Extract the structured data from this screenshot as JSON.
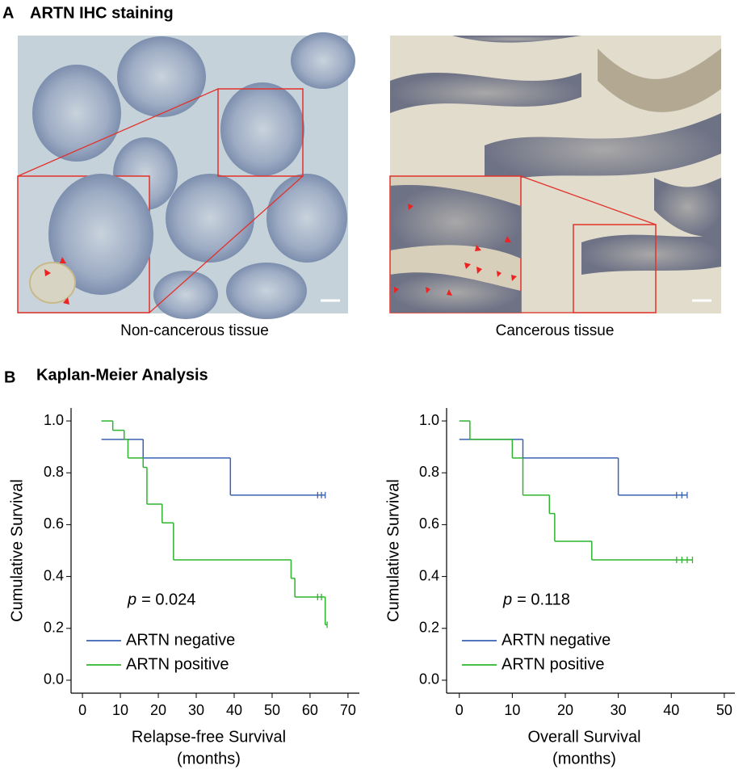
{
  "panel_a": {
    "label": "A",
    "title": "ARTN IHC staining",
    "captions": [
      "Non-cancerous tissue",
      "Cancerous tissue"
    ]
  },
  "panel_b": {
    "label": "B",
    "title": "Kaplan-Meier Analysis"
  },
  "chart_data": [
    {
      "type": "km",
      "xlabel": [
        "Relapse-free Survival",
        "(months)"
      ],
      "ylabel": "Cumulative Survival",
      "xlim": [
        -3,
        73
      ],
      "ylim": [
        -0.05,
        1.05
      ],
      "xticks": [
        0,
        10,
        20,
        30,
        40,
        50,
        60,
        70
      ],
      "yticks": [
        {
          "value": 0,
          "label": "0.0"
        },
        0.2,
        0.4,
        0.6,
        0.8,
        {
          "value": 1,
          "label": "1.0"
        }
      ],
      "legend": "lower left",
      "annotation": {
        "symbol": "p",
        "text": "= 0.024",
        "color": "#e8201e"
      },
      "series": [
        {
          "name": "ARTN negative",
          "color": "#3a62b4",
          "x": [
            5,
            16,
            39,
            62,
            63,
            64
          ],
          "values": [
            0.929,
            0.857,
            0.714,
            0.714,
            0.714,
            0.714
          ],
          "censored": [
            false,
            false,
            false,
            true,
            true,
            true
          ]
        },
        {
          "name": "ARTN positive",
          "color": "#2db52d",
          "x": [
            5,
            8,
            11,
            12,
            16,
            17,
            21,
            24,
            55,
            56,
            62,
            63,
            64,
            64.5
          ],
          "values": [
            1,
            0.964,
            0.929,
            0.857,
            0.821,
            0.679,
            0.607,
            0.464,
            0.393,
            0.321,
            0.321,
            0.321,
            0.214,
            0.214
          ],
          "censored": [
            false,
            false,
            false,
            false,
            false,
            false,
            false,
            false,
            false,
            false,
            true,
            true,
            false,
            true
          ]
        }
      ]
    },
    {
      "type": "km",
      "xlabel": [
        "Overall Survival",
        "(months)"
      ],
      "ylabel": "Cumulative Survival",
      "xlim": [
        -2.4,
        52
      ],
      "ylim": [
        -0.05,
        1.05
      ],
      "xticks": [
        0,
        10,
        20,
        30,
        40,
        50
      ],
      "yticks": [
        {
          "value": 0,
          "label": "0.0"
        },
        0.2,
        0.4,
        0.6,
        0.8,
        {
          "value": 1,
          "label": "1.0"
        }
      ],
      "legend": "lower left",
      "annotation": {
        "symbol": "p",
        "text": "= 0.118",
        "color": "#000000"
      },
      "series": [
        {
          "name": "ARTN negative",
          "color": "#3a62b4",
          "x": [
            0,
            12,
            30,
            41,
            42,
            43
          ],
          "values": [
            0.929,
            0.857,
            0.714,
            0.714,
            0.714,
            0.714
          ],
          "censored": [
            false,
            false,
            false,
            true,
            true,
            true
          ]
        },
        {
          "name": "ARTN positive",
          "color": "#2db52d",
          "x": [
            0,
            2,
            10,
            12,
            17,
            18,
            25,
            41,
            42,
            43,
            44
          ],
          "values": [
            1,
            0.929,
            0.857,
            0.714,
            0.643,
            0.536,
            0.464,
            0.464,
            0.464,
            0.464,
            0.464
          ],
          "censored": [
            false,
            false,
            false,
            false,
            false,
            false,
            false,
            true,
            true,
            true,
            true
          ]
        }
      ]
    }
  ]
}
